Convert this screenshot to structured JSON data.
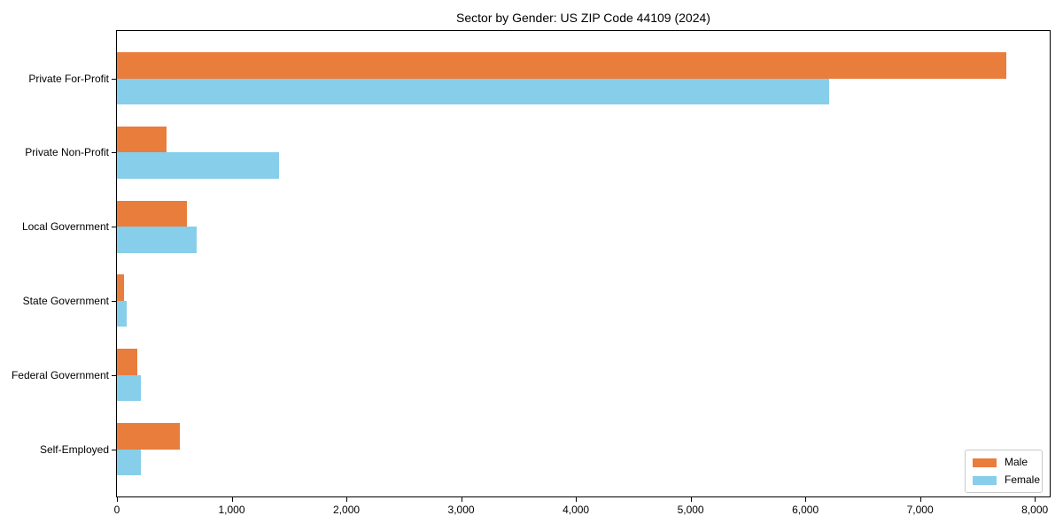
{
  "chart_data": {
    "type": "bar",
    "orientation": "horizontal",
    "title": "Sector by Gender: US ZIP Code 44109 (2024)",
    "categories": [
      "Private For-Profit",
      "Private Non-Profit",
      "Local Government",
      "State Government",
      "Federal Government",
      "Self-Employed"
    ],
    "series": [
      {
        "name": "Male",
        "color": "#E87D3C",
        "values": [
          7750,
          430,
          610,
          60,
          180,
          550
        ]
      },
      {
        "name": "Female",
        "color": "#87CEEB",
        "values": [
          6210,
          1410,
          695,
          85,
          210,
          210
        ]
      }
    ],
    "xlabel": "",
    "ylabel": "",
    "xlim": [
      0,
      8130
    ],
    "xticks": [
      0,
      1000,
      2000,
      3000,
      4000,
      5000,
      6000,
      7000,
      8000
    ],
    "xtick_labels": [
      "0",
      "1,000",
      "2,000",
      "3,000",
      "4,000",
      "5,000",
      "6,000",
      "7,000",
      "8,000"
    ],
    "grid": false,
    "legend": {
      "position": "lower right",
      "labels": [
        "Male",
        "Female"
      ]
    }
  },
  "colors": {
    "male": "#E87D3C",
    "female": "#87CEEB",
    "axis": "#000000",
    "legend_border": "#c9c9c9",
    "background": "#ffffff"
  }
}
